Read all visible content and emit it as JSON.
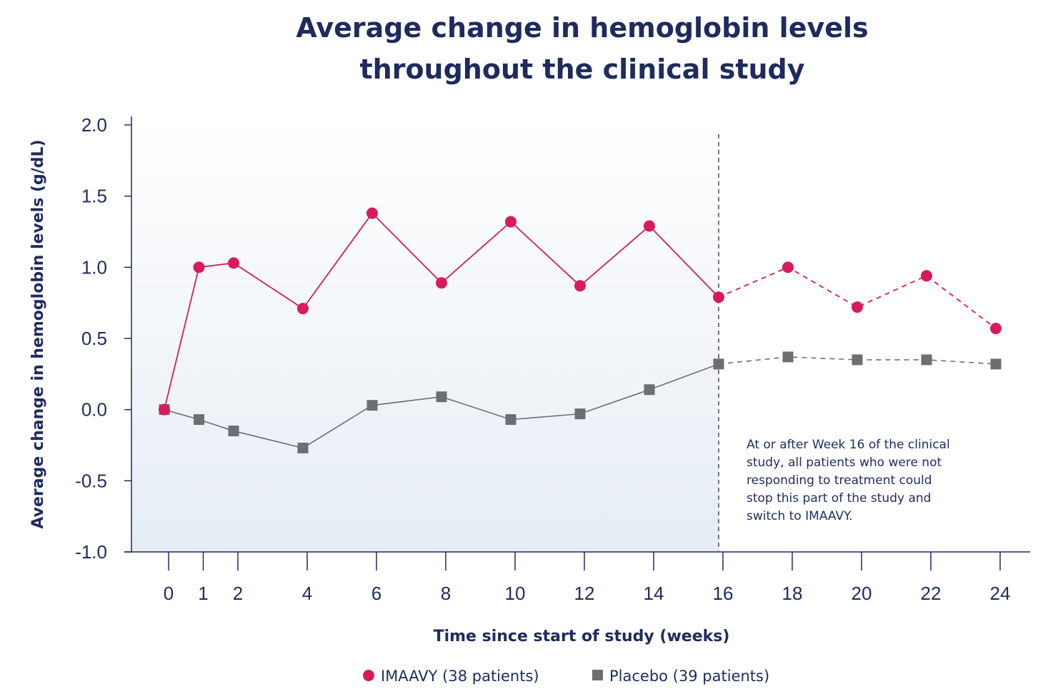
{
  "chart_data": {
    "type": "line",
    "title_lines": [
      "Average change in hemoglobin levels",
      "throughout the clinical study"
    ],
    "xlabel": "Time since start of study (weeks)",
    "ylabel": "Average change in hemoglobin levels (g/dL)",
    "ylim": [
      -1.0,
      2.0
    ],
    "yticks": [
      "2.0",
      "1.5",
      "1.0",
      "0.5",
      "0.0",
      "-0.5",
      "-1.0"
    ],
    "ytick_values": [
      2.0,
      1.5,
      1.0,
      0.5,
      0.0,
      -0.5,
      -1.0
    ],
    "x": [
      0,
      1,
      2,
      4,
      6,
      8,
      10,
      12,
      14,
      16,
      18,
      20,
      22,
      24
    ],
    "xtick_labels": [
      "0",
      "1",
      "2",
      "4",
      "6",
      "8",
      "10",
      "12",
      "14",
      "16",
      "18",
      "20",
      "22",
      "24"
    ],
    "series": [
      {
        "name": "IMAAVY (38 patients)",
        "color": "#d81b5a",
        "marker": "circle",
        "values": [
          0.0,
          1.0,
          1.03,
          0.71,
          1.38,
          0.89,
          1.32,
          0.87,
          1.29,
          0.79,
          1.0,
          0.72,
          0.94,
          0.57
        ]
      },
      {
        "name": "Placebo (39 patients)",
        "color": "#6d6e71",
        "marker": "square",
        "values": [
          0.0,
          -0.07,
          -0.15,
          -0.27,
          0.03,
          0.09,
          -0.07,
          -0.03,
          0.14,
          0.32,
          0.37,
          0.35,
          0.35,
          0.32
        ]
      }
    ],
    "divider_at_week": 16,
    "shaded_region_weeks": [
      0,
      16
    ],
    "annotation_lines": [
      "At or after Week 16 of the clinical",
      "study, all patients who were not",
      "responding to treatment could",
      "stop this part of the study and",
      "switch to IMAAVY."
    ],
    "legend_position": "bottom-center",
    "grid": false
  }
}
